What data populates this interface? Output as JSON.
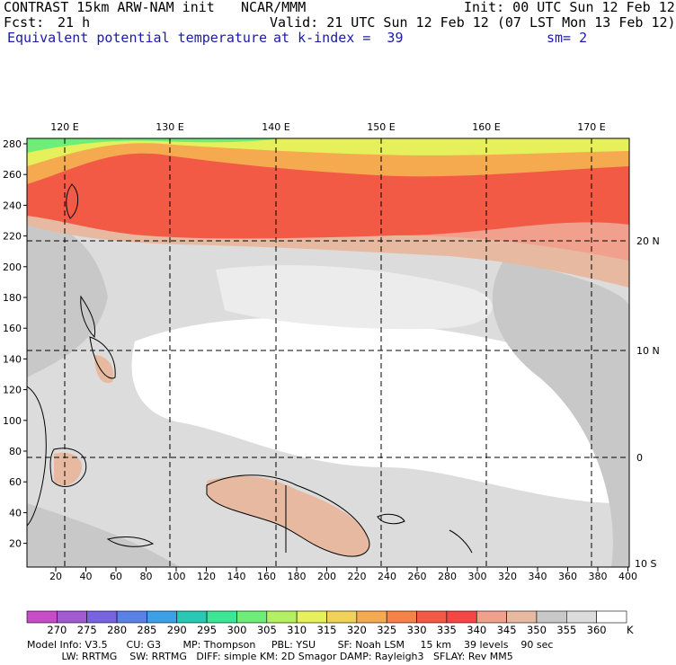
{
  "header": {
    "title_left": "CONTRAST 15km ARW-NAM init",
    "org": "NCAR/MMM",
    "init": "Init: 00 UTC Sun 12 Feb 12",
    "fcst_label": "Fcst:",
    "fcst_value": "21 h",
    "valid": "Valid: 21 UTC Sun 12 Feb 12 (07 LST Mon 13 Feb 12)",
    "field": "Equivalent potential temperature",
    "level": "at k-index =  39",
    "smooth": "sm= 2"
  },
  "map": {
    "lon_labels": [
      "120 E",
      "130 E",
      "140 E",
      "150 E",
      "160 E",
      "170 E"
    ],
    "lat_labels": [
      "20 N",
      "10 N",
      "0",
      "10 S"
    ],
    "x_ticks": [
      "20",
      "40",
      "60",
      "80",
      "100",
      "120",
      "140",
      "160",
      "180",
      "200",
      "220",
      "240",
      "260",
      "280",
      "300",
      "320",
      "340",
      "360",
      "380",
      "400"
    ],
    "y_ticks": [
      "280",
      "260",
      "240",
      "220",
      "200",
      "180",
      "160",
      "140",
      "120",
      "100",
      "80",
      "60",
      "40",
      "20"
    ]
  },
  "colorbar": {
    "levels": [
      "270",
      "275",
      "280",
      "285",
      "290",
      "295",
      "300",
      "305",
      "310",
      "315",
      "320",
      "325",
      "330",
      "335",
      "340",
      "345",
      "350",
      "355",
      "360"
    ],
    "unit": "K",
    "colors": [
      "#c84cc8",
      "#a05ad2",
      "#7864e0",
      "#5a82e6",
      "#3ca0e6",
      "#28c8b4",
      "#3ce696",
      "#6eee78",
      "#b4f064",
      "#e6f05a",
      "#f0d25a",
      "#f5aa50",
      "#f58246",
      "#f25a46",
      "#f54646",
      "#f0a08c",
      "#e6b9a0",
      "#c8c8c8",
      "#dcdcdc",
      "#ffffff"
    ]
  },
  "footer": {
    "line1": "Model Info: V3.5      CU: G3       MP: Thompson     PBL: YSU       SF: Noah LSM     15 km    39 levels    90 sec",
    "line2": "           LW: RRTMG    SW: RRTMG   DIFF: simple KM: 2D Smagor DAMP: Rayleigh3   SFLAY: Rev MM5"
  }
}
